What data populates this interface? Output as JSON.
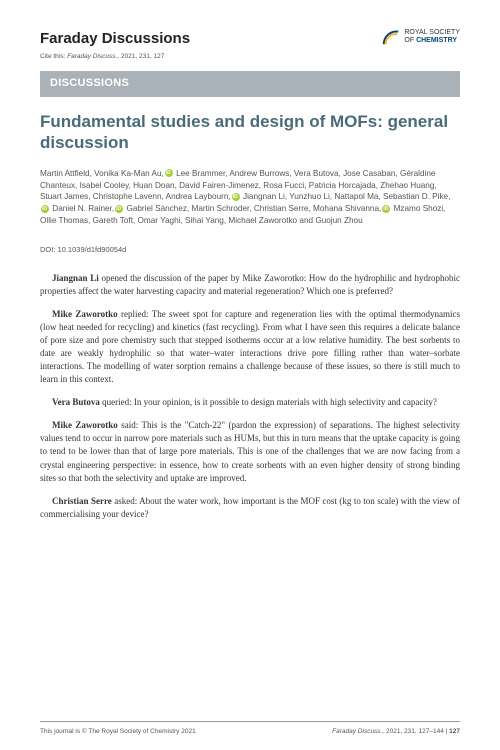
{
  "header": {
    "journal": "Faraday Discussions",
    "cite_prefix": "Cite this:",
    "cite_italic": "Faraday Discuss.,",
    "cite_rest": "2021, 231, 127",
    "logo_line1": "ROYAL SOCIETY",
    "logo_line2_prefix": "OF",
    "logo_line2_bold": "CHEMISTRY"
  },
  "banner": "DISCUSSIONS",
  "title": "Fundamental studies and design of MOFs: general discussion",
  "authors_parts": [
    "Martin Attfield, Vonika Ka-Man Au,",
    "ORCID",
    " Lee Brammer, Andrew Burrows, Vera Butova, Jose Casaban, Géraldine Chanteux, Isabel Cooley, Huan Doan, David Fairen-Jimenez, Rosa Fucci, Patricia Horcajada, Zhehao Huang, Stuart James, Christophe Lavenn, Andrea Laybourn,",
    "ORCID",
    " Jiangnan Li, Yunzhuo Li, Nattapol Ma, Sebastian D. Pike,",
    "ORCID",
    " Daniel N. Rainer,",
    "ORCID",
    " Gabriel Sánchez, Martin Schroder, Christian Serre, Mohana Shivanna,",
    "ORCID",
    " Mzamo Shozi, Ollie Thomas, Gareth Toft, Omar Yaghi, Sihai Yang, Michael Zaworotko and Guojun Zhou"
  ],
  "doi": "DOI: 10.1039/d1fd90054d",
  "paragraphs": [
    {
      "speaker": "Jiangnan Li",
      "text": " opened the discussion of the paper by Mike Zaworotko: How do the hydrophilic and hydrophobic properties affect the water harvesting capacity and material regeneration? Which one is preferred?"
    },
    {
      "speaker": "Mike Zaworotko",
      "text": " replied: The sweet spot for capture and regeneration lies with the optimal thermodynamics (low heat needed for recycling) and kinetics (fast recycling). From what I have seen this requires a delicate balance of pore size and pore chemistry such that stepped isotherms occur at a low relative humidity. The best sorbents to date are weakly hydrophilic so that water–water interactions drive pore filling rather than water–sorbate interactions. The modelling of water sorption remains a challenge because of these issues, so there is still much to learn in this context."
    },
    {
      "speaker": "Vera Butova",
      "text": " queried: In your opinion, is it possible to design materials with high selectivity and capacity?"
    },
    {
      "speaker": "Mike Zaworotko",
      "text": " said: This is the \"Catch-22\" (pardon the expression) of separations. The highest selectivity values tend to occur in narrow pore materials such as HUMs, but this in turn means that the uptake capacity is going to tend to be lower than that of large pore materials. This is one of the challenges that we are now facing from a crystal engineering perspective: in essence, how to create sorbents with an even higher density of strong binding sites so that both the selectivity and uptake are improved."
    },
    {
      "speaker": "Christian Serre",
      "text": " asked: About the water work, how important is the MOF cost (kg to ton scale) with the view of commercialising your device?"
    }
  ],
  "footer": {
    "left": "This journal is © The Royal Society of Chemistry 2021",
    "right_italic": "Faraday Discuss.,",
    "right_rest": "2021, 231, 127–144 |",
    "page": "127"
  },
  "colors": {
    "banner_bg": "#a8b2b8",
    "title_color": "#4a6b7a",
    "orcid_green": "#a6ce39",
    "logo_blue": "#004976",
    "logo_yellow": "#f9b233"
  }
}
